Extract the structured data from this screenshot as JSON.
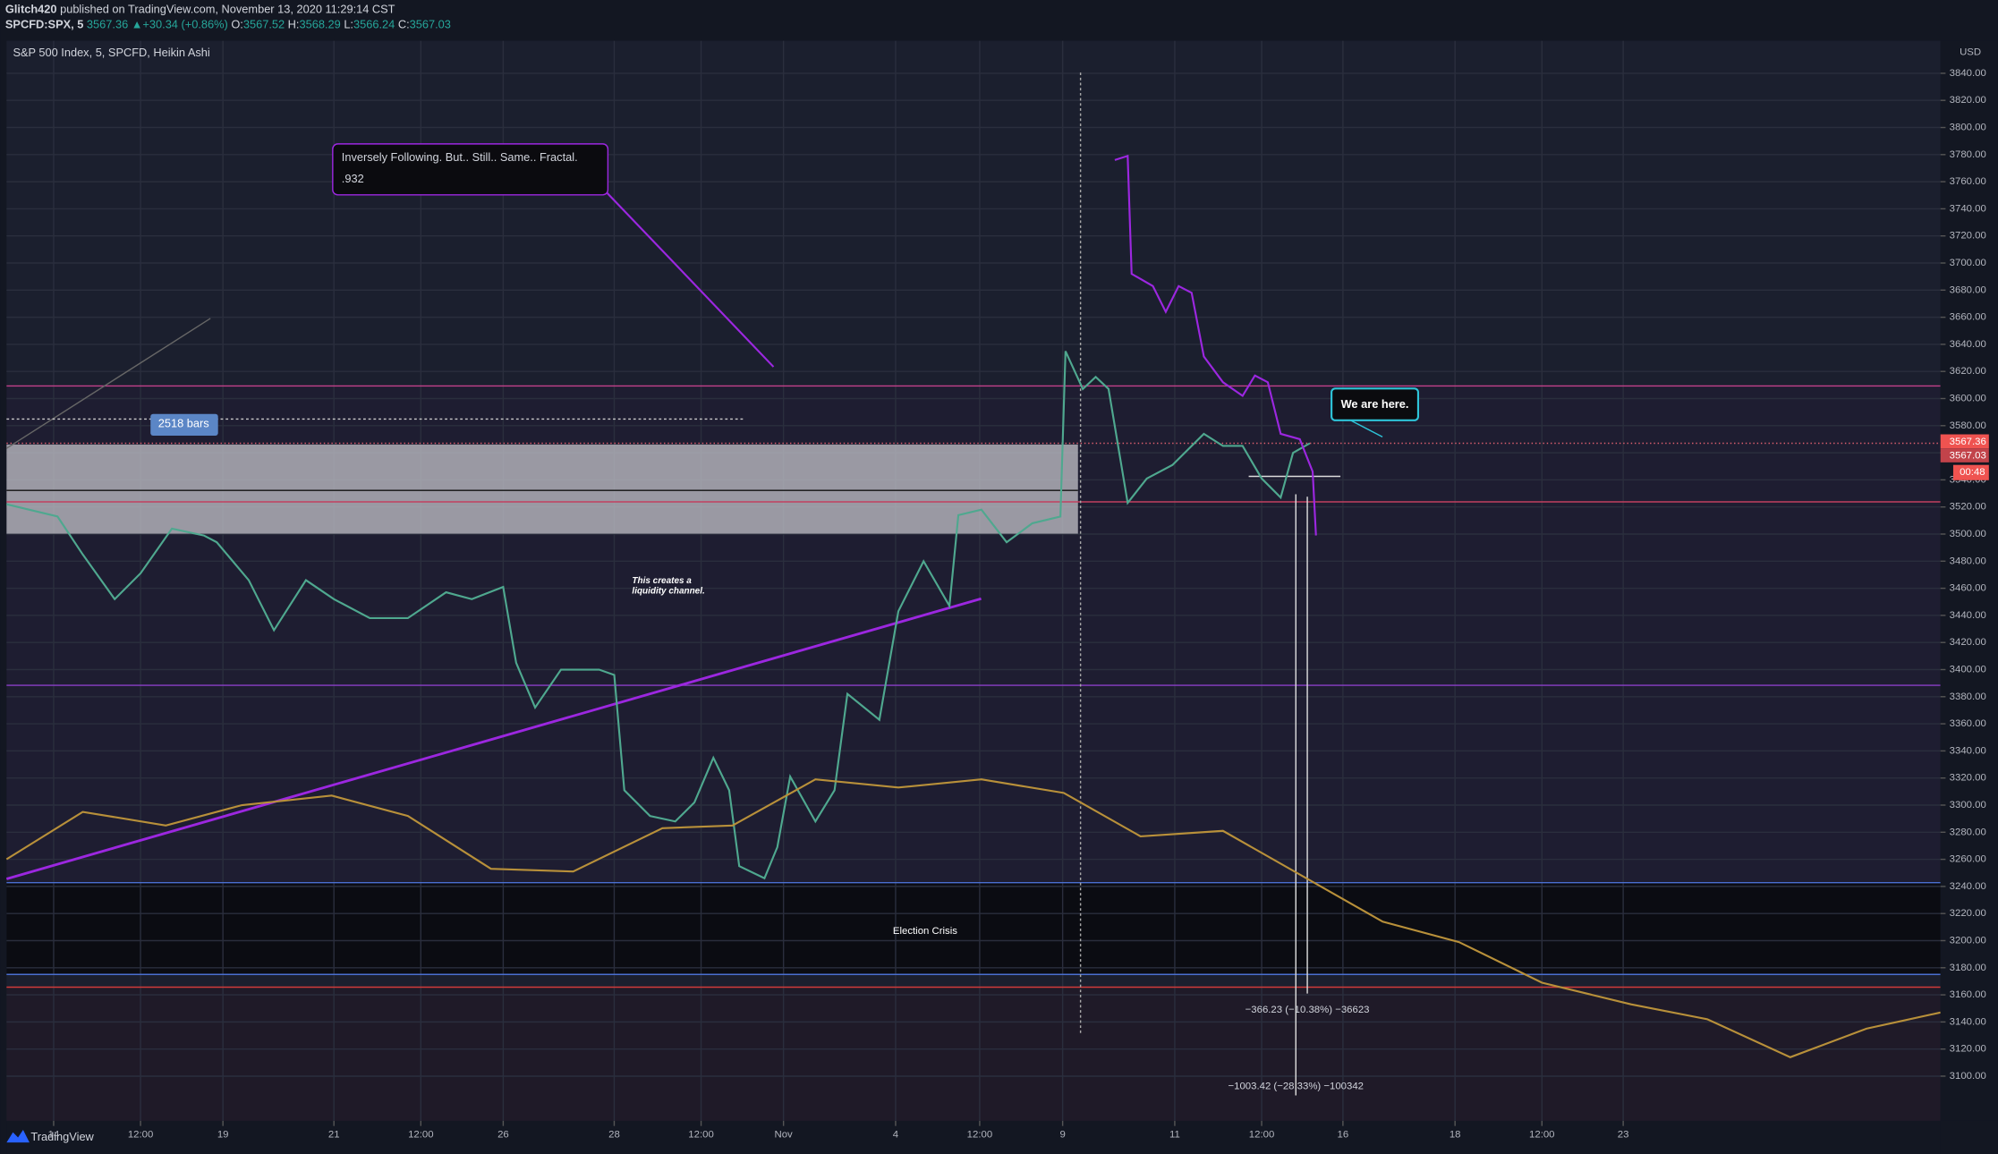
{
  "chart_data": {
    "type": "line",
    "title": "S&P 500 Index, 5, SPCFD, Heikin Ashi",
    "publisher_user": "Glitch420",
    "publisher_line": "published on TradingView.com, November 13, 2020 11:29:14 CST",
    "symbol": "SPCFD:SPX, 5",
    "last_price": "3567.36",
    "change_arrow": "▲",
    "change": "+30.34 (+0.86%)",
    "ohlc": [
      {
        "label": "O:",
        "value": "3567.52"
      },
      {
        "label": "H:",
        "value": "3568.29"
      },
      {
        "label": "L:",
        "value": "3566.24"
      },
      {
        "label": "C:",
        "value": "3567.03"
      }
    ],
    "currency": "USD",
    "price_tags": [
      "3567.36",
      "3567.03",
      "00:48"
    ],
    "annotations": [
      "Inversely Following. But.. Still.. Same.. Fractal.",
      ".932",
      "We are here.",
      "2518 bars",
      "This creates a",
      "liquidity channel.",
      "Election Crisis",
      "−366.23 (−10.38%) −36623",
      "−1003.42 (−28.33%) −100342"
    ],
    "brand": "TradingView",
    "xlim": [
      0,
      34.5
    ],
    "xticks": [
      {
        "value": 0.84,
        "label": "14"
      },
      {
        "value": 2.39,
        "label": "12:00"
      },
      {
        "value": 3.86,
        "label": "19"
      },
      {
        "value": 5.84,
        "label": "21"
      },
      {
        "value": 7.39,
        "label": "12:00"
      },
      {
        "value": 8.86,
        "label": "26"
      },
      {
        "value": 10.84,
        "label": "28"
      },
      {
        "value": 12.39,
        "label": "12:00"
      },
      {
        "value": 13.86,
        "label": "Nov"
      },
      {
        "value": 15.86,
        "label": "4"
      },
      {
        "value": 17.36,
        "label": "12:00"
      },
      {
        "value": 18.84,
        "label": "9"
      },
      {
        "value": 20.84,
        "label": "11"
      },
      {
        "value": 22.39,
        "label": "12:00"
      },
      {
        "value": 23.84,
        "label": "16"
      },
      {
        "value": 25.84,
        "label": "18"
      },
      {
        "value": 27.39,
        "label": "12:00"
      },
      {
        "value": 28.84,
        "label": "23"
      }
    ],
    "ylim": [
      3067,
      3864
    ],
    "yticks": [
      {
        "value": 3100,
        "label": "3100.00"
      },
      {
        "value": 3120,
        "label": "3120.00"
      },
      {
        "value": 3140,
        "label": "3140.00"
      },
      {
        "value": 3160,
        "label": "3160.00"
      },
      {
        "value": 3180,
        "label": "3180.00"
      },
      {
        "value": 3200,
        "label": "3200.00"
      },
      {
        "value": 3220,
        "label": "3220.00"
      },
      {
        "value": 3240,
        "label": "3240.00"
      },
      {
        "value": 3260,
        "label": "3260.00"
      },
      {
        "value": 3280,
        "label": "3280.00"
      },
      {
        "value": 3300,
        "label": "3300.00"
      },
      {
        "value": 3320,
        "label": "3320.00"
      },
      {
        "value": 3340,
        "label": "3340.00"
      },
      {
        "value": 3360,
        "label": "3360.00"
      },
      {
        "value": 3380,
        "label": "3380.00"
      },
      {
        "value": 3400,
        "label": "3400.00"
      },
      {
        "value": 3420,
        "label": "3420.00"
      },
      {
        "value": 3440,
        "label": "3440.00"
      },
      {
        "value": 3460,
        "label": "3460.00"
      },
      {
        "value": 3480,
        "label": "3480.00"
      },
      {
        "value": 3500,
        "label": "3500.00"
      },
      {
        "value": 3520,
        "label": "3520.00"
      },
      {
        "value": 3540,
        "label": "3540.00"
      },
      {
        "value": 3560,
        "label": "3560.00"
      },
      {
        "value": 3580,
        "label": "3580.00"
      },
      {
        "value": 3600,
        "label": "3600.00"
      },
      {
        "value": 3620,
        "label": "3620.00"
      },
      {
        "value": 3640,
        "label": "3640.00"
      },
      {
        "value": 3660,
        "label": "3660.00"
      },
      {
        "value": 3680,
        "label": "3680.00"
      },
      {
        "value": 3700,
        "label": "3700.00"
      },
      {
        "value": 3720,
        "label": "3720.00"
      },
      {
        "value": 3740,
        "label": "3740.00"
      },
      {
        "value": 3760,
        "label": "3760.00"
      },
      {
        "value": 3780,
        "label": "3780.00"
      },
      {
        "value": 3800,
        "label": "3800.00"
      },
      {
        "value": 3820,
        "label": "3820.00"
      },
      {
        "value": 3840,
        "label": "3840.00"
      }
    ],
    "grid": true,
    "series": [
      {
        "color": "#4fa88f",
        "x": [
          0,
          0.91,
          1.36,
          1.93,
          2.39,
          2.95,
          3.52,
          3.75,
          4.32,
          4.77,
          5.34,
          5.84,
          6.48,
          7.16,
          7.84,
          8.3,
          8.86,
          9.09,
          9.43,
          9.89,
          10.57,
          10.84,
          11.02,
          11.48,
          11.93,
          12.27,
          12.61,
          12.89,
          13.07,
          13.52,
          13.75,
          13.98,
          14.43,
          14.77,
          15.0,
          15.57,
          15.91,
          16.36,
          16.82,
          16.98,
          17.39,
          17.84,
          18.3,
          18.8,
          18.89,
          19.2,
          19.43,
          19.66,
          20.0,
          20.34,
          20.8,
          21.36,
          21.7,
          22.05,
          22.39,
          22.73,
          22.95,
          23.25
        ],
        "values": [
          3522,
          3513,
          3485,
          3452,
          3471,
          3504,
          3499,
          3494,
          3466,
          3429,
          3466,
          3452,
          3438,
          3438,
          3457,
          3452,
          3461,
          3405,
          3372,
          3400,
          3400,
          3396,
          3311,
          3292,
          3288,
          3302,
          3335,
          3311,
          3255,
          3246,
          3269,
          3321,
          3288,
          3311,
          3382,
          3363,
          3443,
          3480,
          3447,
          3514,
          3518,
          3494,
          3508,
          3513,
          3635,
          3607,
          3616,
          3607,
          3523,
          3541,
          3551,
          3574,
          3565,
          3565,
          3541,
          3527,
          3560,
          3567
        ]
      },
      {
        "color": "#9c27e0",
        "x": [
          19.77,
          20.0,
          20.07,
          20.45,
          20.68,
          20.91,
          21.14,
          21.36,
          21.7,
          22.05,
          22.27,
          22.5,
          22.73,
          23.07,
          23.3,
          23.36
        ],
        "values": [
          3776,
          3779,
          3692,
          3683,
          3664,
          3683,
          3678,
          3631,
          3612,
          3602,
          3617,
          3612,
          3574,
          3570,
          3546,
          3499
        ]
      },
      {
        "color": "#b8903a",
        "x": [
          0,
          1.36,
          2.84,
          4.2,
          5.8,
          7.16,
          8.64,
          10.11,
          11.7,
          12.95,
          14.43,
          15.91,
          17.39,
          18.86,
          20.23,
          21.7,
          24.55,
          25.91,
          27.39,
          28.98,
          30.34,
          31.82,
          33.18,
          34.5
        ],
        "values": [
          3260,
          3295,
          3285,
          3300,
          3307,
          3292,
          3253,
          3251,
          3283,
          3285,
          3319,
          3313,
          3319,
          3309,
          3277,
          3281,
          3214,
          3199,
          3169,
          3153,
          3142,
          3114,
          3135,
          3147
        ]
      }
    ]
  }
}
